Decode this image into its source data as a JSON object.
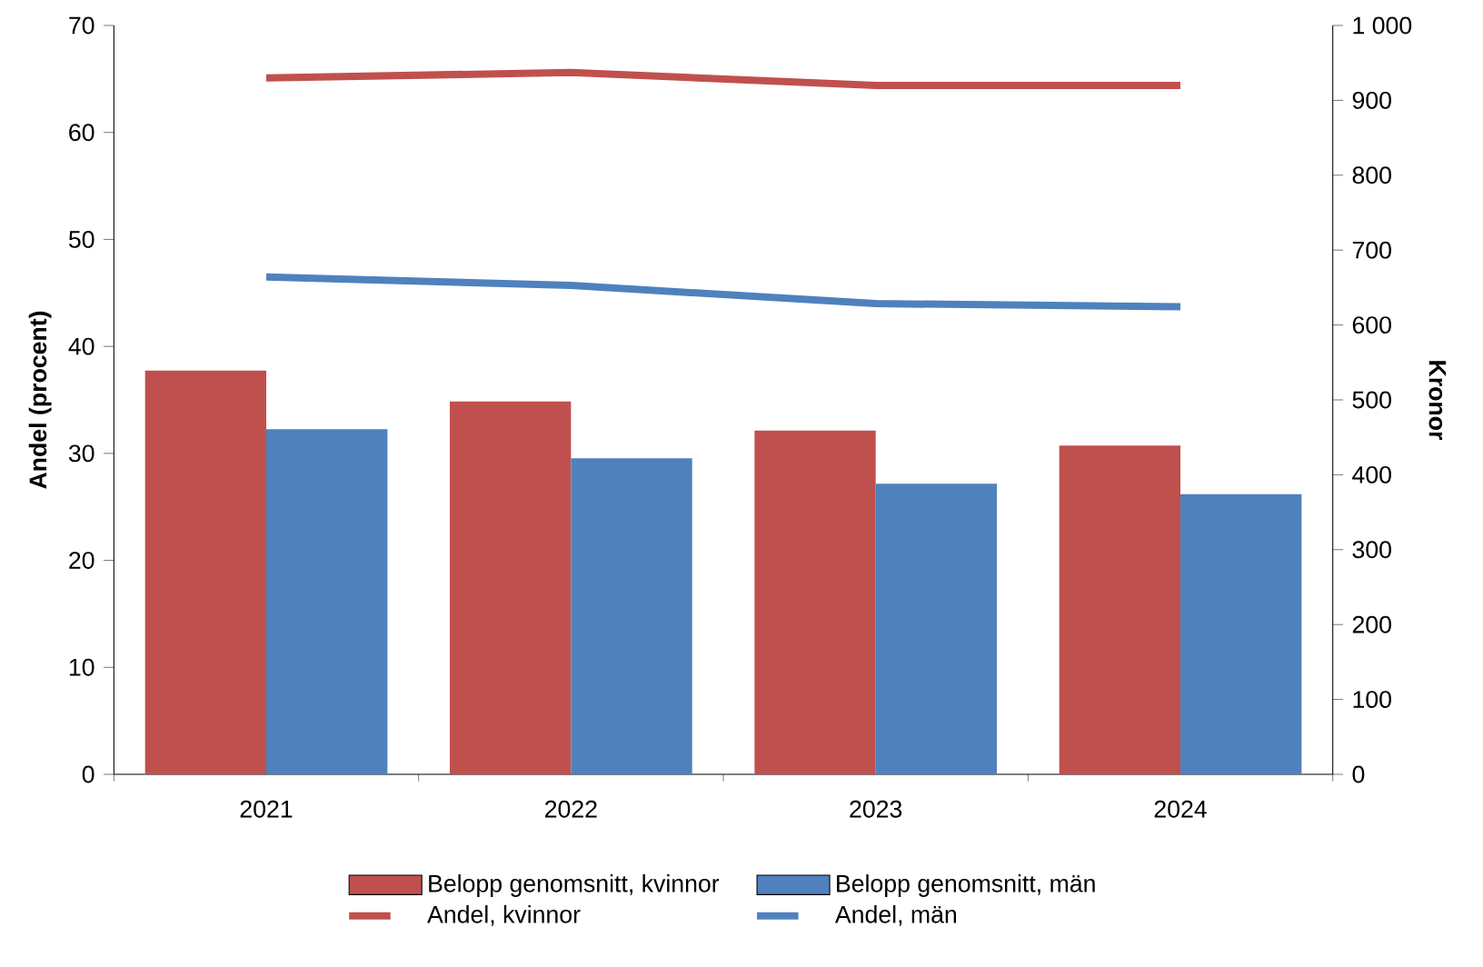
{
  "chart_data": {
    "type": "bar",
    "categories": [
      "2021",
      "2022",
      "2023",
      "2024"
    ],
    "series": [
      {
        "name": "Belopp genomsnitt, kvinnor",
        "axis": "y2",
        "color": "#c0504d",
        "values": [
          539,
          498,
          459,
          439
        ]
      },
      {
        "name": "Belopp genomsnitt, män",
        "axis": "y2",
        "color": "#4f81bd",
        "values": [
          461,
          422,
          388,
          374
        ]
      },
      {
        "name": "Andel, kvinnor",
        "type": "line",
        "color": "#c0504d",
        "values": [
          65.1,
          65.6,
          64.4,
          64.4
        ]
      },
      {
        "name": "Andel, män",
        "type": "line",
        "color": "#4f81bd",
        "values": [
          46.5,
          45.7,
          44.0,
          43.7
        ]
      }
    ],
    "ylabel": "Andel (procent)",
    "y2label": "Kronor",
    "ylim": [
      0,
      70
    ],
    "yticks": [
      0,
      10,
      20,
      30,
      40,
      50,
      60,
      70
    ],
    "y2lim": [
      0,
      1000
    ],
    "y2ticks": [
      0,
      100,
      200,
      300,
      400,
      500,
      600,
      700,
      800,
      900,
      {
        "value": 1000,
        "label": "1 000"
      }
    ],
    "legend": "bottom",
    "marker": "none",
    "line_style": "solid",
    "grid": false
  }
}
